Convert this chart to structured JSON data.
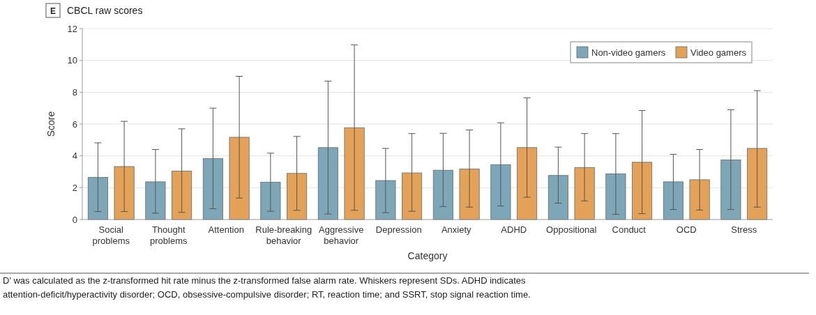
{
  "chart_data": {
    "type": "bar",
    "title": "CBCL raw scores",
    "xlabel": "Category",
    "ylabel": "Score",
    "categories": [
      "Social problems",
      "Thought problems",
      "Attention",
      "Rule-breaking behavior",
      "Aggressive behavior",
      "Depression",
      "Anxiety",
      "ADHD",
      "Oppositional",
      "Conduct",
      "OCD",
      "Stress"
    ],
    "series": [
      {
        "name": "Non-video gamers",
        "color": "#7da7b6",
        "values": [
          2.65,
          2.37,
          3.83,
          2.35,
          4.52,
          2.45,
          3.1,
          3.45,
          2.77,
          2.87,
          2.37,
          3.75
        ],
        "errors": [
          [
            0.5,
            4.82
          ],
          [
            0.4,
            4.4
          ],
          [
            0.68,
            7.0
          ],
          [
            0.52,
            4.17
          ],
          [
            0.35,
            8.7
          ],
          [
            0.43,
            4.47
          ],
          [
            0.82,
            5.42
          ],
          [
            0.85,
            6.08
          ],
          [
            1.03,
            4.55
          ],
          [
            0.33,
            5.4
          ],
          [
            0.63,
            4.1
          ],
          [
            0.63,
            6.9
          ]
        ]
      },
      {
        "name": "Video gamers",
        "color": "#e3a257",
        "values": [
          3.33,
          3.05,
          5.17,
          2.9,
          5.77,
          2.93,
          3.17,
          4.52,
          3.27,
          3.6,
          2.5,
          4.47
        ],
        "errors": [
          [
            0.5,
            6.17
          ],
          [
            0.45,
            5.7
          ],
          [
            1.35,
            9.0
          ],
          [
            0.58,
            5.22
          ],
          [
            0.58,
            10.98
          ],
          [
            0.52,
            5.4
          ],
          [
            0.78,
            5.63
          ],
          [
            1.4,
            7.65
          ],
          [
            1.17,
            5.4
          ],
          [
            0.37,
            6.85
          ],
          [
            0.6,
            4.4
          ],
          [
            0.78,
            8.1
          ]
        ]
      }
    ],
    "ylim": [
      0,
      12
    ],
    "yticks": [
      0,
      2,
      4,
      6,
      8,
      10,
      12
    ],
    "grid": "y",
    "legend": "top right",
    "annotations": [
      "E",
      "D' was calculated as the z-transformed hit rate minus the z-transformed false alarm rate. Whiskers represent SDs. ADHD indicates attention-deficit/hyperactivity disorder; OCD, obsessive-compulsive disorder; RT, reaction time; and SSRT, stop signal reaction time."
    ]
  }
}
